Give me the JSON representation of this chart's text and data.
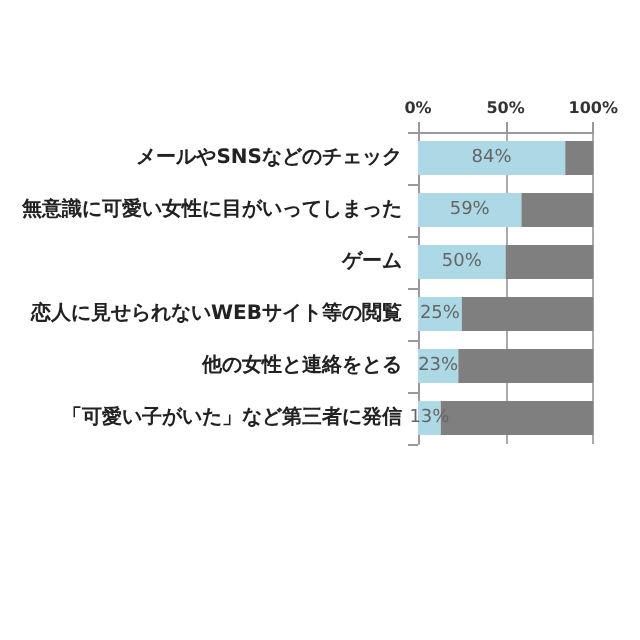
{
  "chart_data": {
    "type": "bar",
    "orientation": "horizontal",
    "stacked": true,
    "categories": [
      "メールやSNSなどのチェック",
      "無意識に可愛い女性に目がいってしまった",
      "ゲーム",
      "恋人に見せられないWEBサイト等の閲覧",
      "他の女性と連絡をとる",
      "「可愛い子がいた」など第三者に発信"
    ],
    "series": [
      {
        "color": "#add8e6",
        "values": [
          84,
          59,
          50,
          25,
          23,
          13
        ],
        "value_labels": [
          "84%",
          "59%",
          "50%",
          "25%",
          "23%",
          "13%"
        ]
      },
      {
        "color": "#7f7f7f",
        "values": [
          16,
          41,
          50,
          75,
          77,
          87
        ]
      }
    ],
    "xlim": [
      0,
      100
    ],
    "xticks": [
      {
        "value": 0,
        "label": "0%"
      },
      {
        "value": 50,
        "label": "50%"
      },
      {
        "value": 100,
        "label": "100%"
      }
    ],
    "grid": "x"
  }
}
